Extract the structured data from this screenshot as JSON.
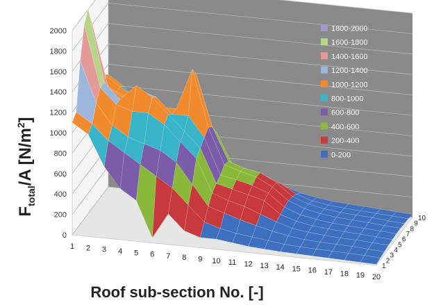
{
  "chart_data": {
    "type": "3d-surface",
    "title": "",
    "xlabel": "Roof sub-section No. [-]",
    "ylabel_main": "F",
    "ylabel_sub": "total",
    "ylabel_rest": "/A  [N/m",
    "ylabel_sup": "2",
    "ylabel_end": "]",
    "depth_label": "",
    "zlim": [
      0,
      2000
    ],
    "z_ticks": [
      "0",
      "200",
      "400",
      "600",
      "800",
      "1000",
      "1200",
      "1400",
      "1600",
      "1800",
      "2000"
    ],
    "x_ticks": [
      "1",
      "2",
      "3",
      "4",
      "5",
      "6",
      "7",
      "8",
      "9",
      "10",
      "11",
      "12",
      "13",
      "14",
      "15",
      "16",
      "17",
      "18",
      "19",
      "20"
    ],
    "depth_ticks": [
      "1",
      "2",
      "3",
      "4",
      "5",
      "6",
      "7",
      "8",
      "9",
      "10"
    ],
    "legend_position": "right",
    "legend": [
      {
        "label": "1800-2000",
        "color": "#a796c8"
      },
      {
        "label": "1600-1800",
        "color": "#b5d587"
      },
      {
        "label": "1400-1600",
        "color": "#e59a9a"
      },
      {
        "label": "1200-1400",
        "color": "#9db6dc"
      },
      {
        "label": "1000-1200",
        "color": "#f08a2d"
      },
      {
        "label": "800-1000",
        "color": "#3ab4c8"
      },
      {
        "label": "600-800",
        "color": "#7a5ca8"
      },
      {
        "label": "400-600",
        "color": "#8ab83a"
      },
      {
        "label": "200-400",
        "color": "#c8393d"
      },
      {
        "label": "0-200",
        "color": "#3f70c0"
      }
    ],
    "surface_z": [
      [
        1100,
        1150,
        1600,
        1900,
        2000,
        1800,
        1200,
        1150,
        1150,
        1100
      ],
      [
        1000,
        1050,
        1200,
        1300,
        1300,
        1200,
        1100,
        1050,
        1050,
        1000
      ],
      [
        700,
        900,
        1000,
        1150,
        1150,
        1100,
        1050,
        1000,
        950,
        800
      ],
      [
        500,
        800,
        900,
        1100,
        1300,
        1200,
        1100,
        1000,
        900,
        700
      ],
      [
        400,
        700,
        850,
        1100,
        1200,
        1150,
        1000,
        900,
        800,
        600
      ],
      [
        50,
        600,
        800,
        1000,
        1050,
        1000,
        1000,
        900,
        700,
        500
      ],
      [
        300,
        500,
        700,
        850,
        900,
        1000,
        1400,
        1300,
        800,
        500
      ],
      [
        150,
        350,
        500,
        700,
        750,
        800,
        850,
        800,
        700,
        500
      ],
      [
        100,
        200,
        300,
        380,
        420,
        450,
        500,
        480,
        400,
        300
      ],
      [
        100,
        150,
        250,
        320,
        380,
        420,
        450,
        430,
        350,
        250
      ],
      [
        80,
        120,
        200,
        280,
        340,
        380,
        410,
        400,
        320,
        220
      ],
      [
        60,
        100,
        160,
        220,
        300,
        320,
        330,
        320,
        260,
        180
      ],
      [
        50,
        80,
        120,
        160,
        180,
        200,
        210,
        200,
        170,
        130
      ],
      [
        40,
        60,
        90,
        110,
        130,
        140,
        150,
        140,
        120,
        100
      ],
      [
        35,
        50,
        70,
        90,
        100,
        110,
        115,
        110,
        95,
        80
      ],
      [
        30,
        45,
        60,
        75,
        85,
        90,
        95,
        90,
        80,
        70
      ],
      [
        25,
        40,
        55,
        65,
        75,
        80,
        85,
        80,
        70,
        60
      ],
      [
        20,
        35,
        50,
        60,
        65,
        70,
        75,
        70,
        60,
        50
      ],
      [
        15,
        30,
        40,
        50,
        55,
        60,
        60,
        55,
        50,
        40
      ],
      [
        10,
        20,
        30,
        40,
        45,
        50,
        50,
        45,
        40,
        30
      ]
    ]
  }
}
